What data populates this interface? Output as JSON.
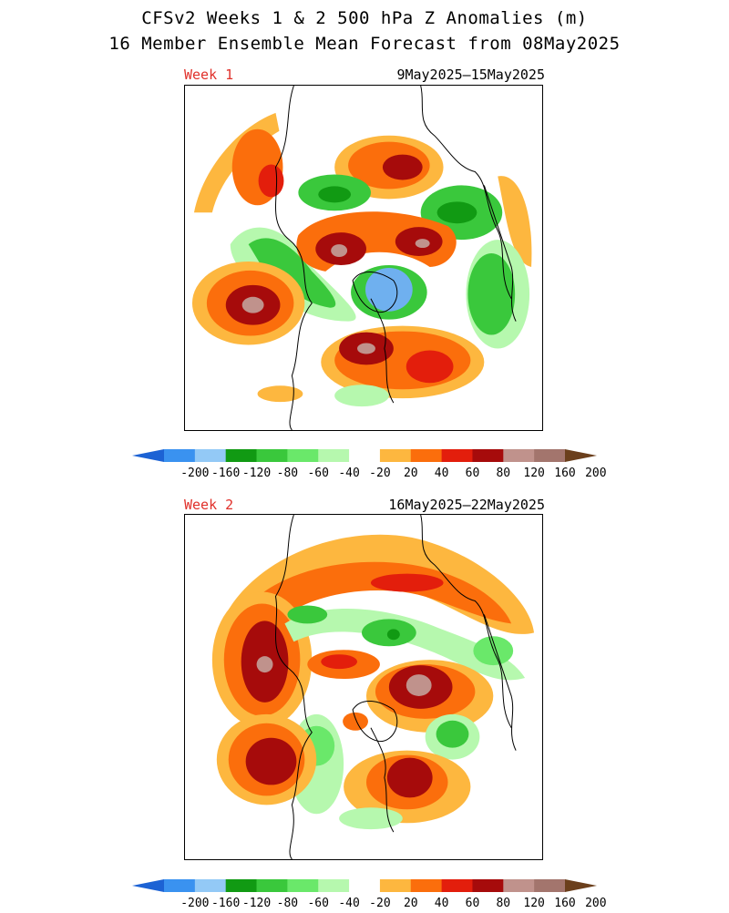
{
  "title_line1": "CFSv2 Weeks 1 & 2 500 hPa Z Anomalies (m)",
  "title_line2": "16 Member Ensemble Mean Forecast from 08May2025",
  "panels": [
    {
      "label": "Week 1",
      "dates": "9May2025–15May2025"
    },
    {
      "label": "Week 2",
      "dates": "16May2025–22May2025"
    }
  ],
  "colorbar": {
    "labels": [
      "-200",
      "-160",
      "-120",
      "-80",
      "-60",
      "-40",
      "-20",
      "20",
      "40",
      "60",
      "80",
      "120",
      "160",
      "200"
    ],
    "colors": [
      "#1c62d4",
      "#3a92f0",
      "#93c9f6",
      "#119a13",
      "#3ac83c",
      "#6ae86a",
      "#b6f8ae",
      "#ffffff",
      "#fdb73f",
      "#fb6e0c",
      "#e31e0c",
      "#a60b0b",
      "#c0928c",
      "#a3756d",
      "#6b3f1c"
    ]
  },
  "map_palette": {
    "neg_blue": "#6fb0ef",
    "neg_green_dark": "#119a13",
    "neg_green": "#3ac83c",
    "neg_green_light": "#b6f8ae",
    "pos_yellow": "#fdb73f",
    "pos_orange": "#fb6e0c",
    "pos_red": "#e31e0c",
    "pos_darkred": "#a60b0b",
    "pos_pink": "#c0928c",
    "coast": "#000000"
  }
}
